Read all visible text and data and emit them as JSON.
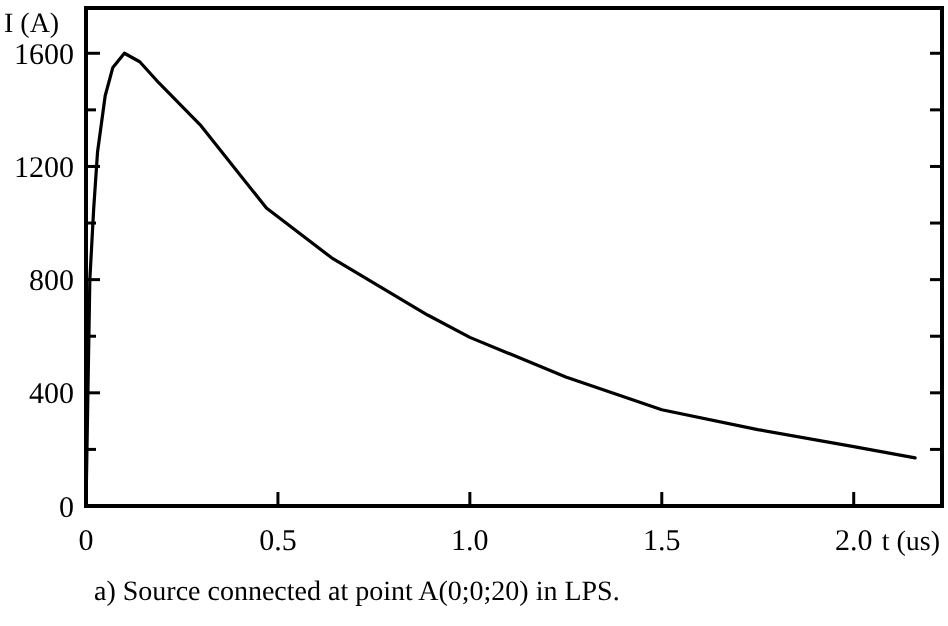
{
  "chart_data": {
    "type": "line",
    "xlabel": "t (us)",
    "ylabel": "I (A)",
    "annotations": [
      "a) Source connected at point A(0;0;20) in LPS."
    ],
    "xlim": [
      0,
      2.23
    ],
    "ylim": [
      0,
      1760
    ],
    "xticks": [
      0,
      {
        "value": 0.5,
        "label": "0.5"
      },
      {
        "value": 1,
        "label": "1.0"
      },
      {
        "value": 1.5,
        "label": "1.5"
      },
      {
        "value": 2,
        "label": "2.0"
      }
    ],
    "yticks": [
      0,
      {
        "value": 200,
        "label": null
      },
      400,
      {
        "value": 600,
        "label": null
      },
      800,
      {
        "value": 1000,
        "label": null
      },
      1200,
      {
        "value": 1400,
        "label": null
      },
      1600
    ],
    "grid": false,
    "marker": "none",
    "line_style": "solid",
    "series": [
      {
        "color": "#000000",
        "x": [
          0,
          0.005,
          0.01,
          0.02,
          0.03,
          0.05,
          0.07,
          0.1,
          0.14,
          0.19,
          0.3,
          0.47,
          0.64,
          0.89,
          1.0,
          1.25,
          1.5,
          1.75,
          2.0,
          2.16
        ],
        "values": [
          0,
          400,
          800,
          1050,
          1250,
          1450,
          1550,
          1600,
          1570,
          1495,
          1343,
          1053,
          877,
          675,
          596,
          456,
          340,
          270,
          210,
          170
        ]
      }
    ]
  }
}
